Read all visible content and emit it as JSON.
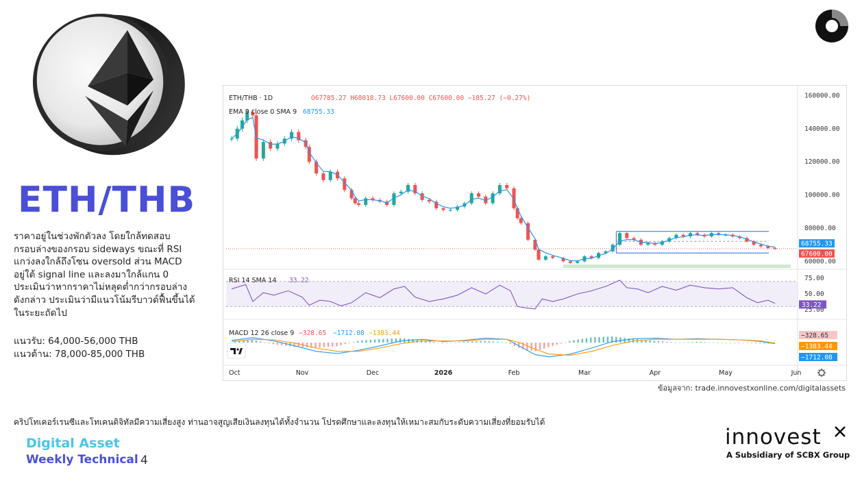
{
  "header": {
    "title": "ETH/THB"
  },
  "description_lines": [
    "ราคาอยู่ในช่วงพักตัวลง โดยใกล้ทดสอบ",
    "กรอบล่างของกรอบ sideways ขณะที่ RSI",
    "แกว่งลงใกล้ถึงโซน oversold ส่วน MACD",
    "อยู่ใต้ signal line และลงมาใกล้แกน 0",
    "ประเมินว่าหากราคาไม่หลุดต่ำกว่ากรอบล่าง",
    "ดังกล่าว ประเมินว่ามีแนวโน้มรีบาวด์ฟื้นขึ้นได้",
    "ในระยะถัดไป"
  ],
  "levels": {
    "support": "แนวรับ: 64,000-56,000 THB",
    "resistance": "แนวต้าน: 78,000-85,000 THB"
  },
  "source": "ข้อมูลจาก: trade.innovestxonline.com/digitalassets",
  "disclaimer": "คริปโทเคอร์เรนซีและโทเคนดิจิทัลมีความเสี่ยงสูง ท่านอาจสูญเสียเงินลงทุนได้ทั้งจำนวน  โปรดศึกษาและลงทุนให้เหมาะสมกับระดับความเสี่ยงที่ยอมรับได้",
  "footer": {
    "line1": "Digital Asset",
    "line2": "Weekly Technical",
    "page": "4"
  },
  "logo": {
    "name": "innovest",
    "subtitle": "A Subsidiary of SCBX Group"
  },
  "colors": {
    "title": "#4a4fd6",
    "footer_line1": "#49c6e5",
    "footer_line2": "#4a4fd6",
    "up": "#26a69a",
    "down": "#ef5350",
    "ema": "#2196f3",
    "rsi": "#7e57c2",
    "macd": "#2196f3",
    "signal": "#ff9800",
    "channel": "#2962ff"
  },
  "chart_data": {
    "type": "candlestick",
    "symbol": "ETH/THB · 1D",
    "ohlc_text": "O67785.27  H68018.73  L67600.00  C67600.00  −185.27 (−0.27%)",
    "ema_label": "EMA 9 close 0 SMA 9",
    "ema_value": "68755.33",
    "rsi_label": "RSI 14 SMA 14",
    "rsi_value": "33.22",
    "macd_label": "MACD 12 26 close 9",
    "macd_values": [
      "−328.65",
      "−1712.08",
      "−1383.44"
    ],
    "x_ticks": [
      "Oct",
      "Nov",
      "Dec",
      "2026",
      "Feb",
      "Mar",
      "Apr",
      "May",
      "Jun"
    ],
    "y_ticks": [
      160000,
      140000,
      120000,
      100000,
      80000,
      60000
    ],
    "y_tick_labels": [
      "160000.00",
      "140000.00",
      "120000.00",
      "100000.00",
      "80000.00",
      "60000.00"
    ],
    "ylim": [
      56000,
      161000
    ],
    "price_badges": [
      {
        "label": "68755.33",
        "value": 68755.33,
        "color": "#2196f3"
      },
      {
        "label": "67600.00",
        "value": 67600,
        "color": "#ef5350"
      }
    ],
    "rsi_ticks": [
      "75.00",
      "50.00",
      "25.00"
    ],
    "rsi_badge": "33.22",
    "macd_badges": [
      {
        "label": "−328.65",
        "color": "#f8c6c6"
      },
      {
        "label": "−1383.44",
        "color": "#ff9800"
      },
      {
        "label": "−1712.08",
        "color": "#2196f3"
      }
    ],
    "channel": {
      "top": 78000,
      "mid": 72000,
      "bottom": 65000,
      "start_month": 5.45,
      "end_month": 8.7
    },
    "support_zone": {
      "from": 56000,
      "to": 58000,
      "start_month": 4.7,
      "end_month": 8.7
    },
    "price_path": [
      [
        0.0,
        134000
      ],
      [
        0.08,
        140000
      ],
      [
        0.15,
        145000
      ],
      [
        0.22,
        150000
      ],
      [
        0.3,
        148000
      ],
      [
        0.35,
        122000
      ],
      [
        0.45,
        132000
      ],
      [
        0.55,
        128000
      ],
      [
        0.65,
        131000
      ],
      [
        0.75,
        134000
      ],
      [
        0.85,
        138000
      ],
      [
        0.95,
        133000
      ],
      [
        1.05,
        129000
      ],
      [
        1.1,
        120000
      ],
      [
        1.2,
        113000
      ],
      [
        1.3,
        109000
      ],
      [
        1.4,
        114000
      ],
      [
        1.5,
        110000
      ],
      [
        1.6,
        103000
      ],
      [
        1.7,
        98000
      ],
      [
        1.75,
        95000
      ],
      [
        1.8,
        94000
      ],
      [
        1.9,
        98000
      ],
      [
        2.0,
        97000
      ],
      [
        2.1,
        96000
      ],
      [
        2.2,
        94000
      ],
      [
        2.3,
        101000
      ],
      [
        2.4,
        102000
      ],
      [
        2.5,
        106000
      ],
      [
        2.6,
        101000
      ],
      [
        2.7,
        97000
      ],
      [
        2.8,
        96000
      ],
      [
        2.9,
        92000
      ],
      [
        3.0,
        91000
      ],
      [
        3.1,
        91000
      ],
      [
        3.2,
        93000
      ],
      [
        3.3,
        95000
      ],
      [
        3.4,
        101000
      ],
      [
        3.5,
        99000
      ],
      [
        3.6,
        95000
      ],
      [
        3.7,
        101000
      ],
      [
        3.8,
        106000
      ],
      [
        3.9,
        104000
      ],
      [
        4.0,
        92000
      ],
      [
        4.05,
        86000
      ],
      [
        4.1,
        83000
      ],
      [
        4.2,
        73000
      ],
      [
        4.3,
        67000
      ],
      [
        4.35,
        61000
      ],
      [
        4.45,
        63000
      ],
      [
        4.55,
        62000
      ],
      [
        4.7,
        60000
      ],
      [
        4.8,
        59000
      ],
      [
        4.9,
        60000
      ],
      [
        5.0,
        63000
      ],
      [
        5.1,
        62000
      ],
      [
        5.2,
        65000
      ],
      [
        5.3,
        66000
      ],
      [
        5.4,
        70000
      ],
      [
        5.5,
        77000
      ],
      [
        5.6,
        74000
      ],
      [
        5.7,
        73000
      ],
      [
        5.8,
        70000
      ],
      [
        5.9,
        71000
      ],
      [
        6.0,
        70000
      ],
      [
        6.1,
        72000
      ],
      [
        6.2,
        74000
      ],
      [
        6.3,
        76000
      ],
      [
        6.4,
        75000
      ],
      [
        6.5,
        77000
      ],
      [
        6.6,
        76000
      ],
      [
        6.7,
        75000
      ],
      [
        6.8,
        77000
      ],
      [
        6.9,
        76000
      ],
      [
        7.0,
        76000
      ],
      [
        7.1,
        75000
      ],
      [
        7.2,
        74000
      ],
      [
        7.3,
        72000
      ],
      [
        7.4,
        70000
      ],
      [
        7.5,
        69000
      ],
      [
        7.6,
        68000
      ],
      [
        7.7,
        67600
      ]
    ],
    "rsi_path": [
      [
        0.0,
        58
      ],
      [
        0.2,
        65
      ],
      [
        0.3,
        38
      ],
      [
        0.45,
        52
      ],
      [
        0.6,
        48
      ],
      [
        0.8,
        55
      ],
      [
        1.0,
        45
      ],
      [
        1.1,
        32
      ],
      [
        1.25,
        40
      ],
      [
        1.4,
        38
      ],
      [
        1.55,
        31
      ],
      [
        1.7,
        36
      ],
      [
        1.9,
        52
      ],
      [
        2.1,
        44
      ],
      [
        2.3,
        58
      ],
      [
        2.45,
        62
      ],
      [
        2.6,
        45
      ],
      [
        2.8,
        38
      ],
      [
        3.0,
        42
      ],
      [
        3.2,
        48
      ],
      [
        3.4,
        60
      ],
      [
        3.6,
        50
      ],
      [
        3.8,
        64
      ],
      [
        3.95,
        55
      ],
      [
        4.05,
        30
      ],
      [
        4.15,
        28
      ],
      [
        4.3,
        26
      ],
      [
        4.4,
        42
      ],
      [
        4.55,
        38
      ],
      [
        4.7,
        42
      ],
      [
        4.9,
        50
      ],
      [
        5.1,
        55
      ],
      [
        5.3,
        62
      ],
      [
        5.5,
        72
      ],
      [
        5.6,
        60
      ],
      [
        5.75,
        58
      ],
      [
        5.9,
        52
      ],
      [
        6.1,
        62
      ],
      [
        6.3,
        56
      ],
      [
        6.5,
        64
      ],
      [
        6.7,
        60
      ],
      [
        6.9,
        58
      ],
      [
        7.1,
        60
      ],
      [
        7.3,
        44
      ],
      [
        7.45,
        36
      ],
      [
        7.6,
        40
      ],
      [
        7.7,
        35
      ]
    ],
    "macd_path": [
      [
        0.0,
        0.4
      ],
      [
        0.3,
        0.9
      ],
      [
        0.6,
        0.3
      ],
      [
        0.9,
        -0.6
      ],
      [
        1.2,
        -1.6
      ],
      [
        1.5,
        -2.0
      ],
      [
        1.8,
        -1.4
      ],
      [
        2.1,
        -0.6
      ],
      [
        2.4,
        0.3
      ],
      [
        2.7,
        0.6
      ],
      [
        3.0,
        0.2
      ],
      [
        3.3,
        0.4
      ],
      [
        3.6,
        0.8
      ],
      [
        3.9,
        0.6
      ],
      [
        4.1,
        -0.8
      ],
      [
        4.3,
        -2.2
      ],
      [
        4.5,
        -2.6
      ],
      [
        4.8,
        -2.1
      ],
      [
        5.1,
        -1.0
      ],
      [
        5.4,
        0.2
      ],
      [
        5.7,
        0.7
      ],
      [
        6.0,
        0.8
      ],
      [
        6.3,
        0.6
      ],
      [
        6.6,
        0.7
      ],
      [
        6.9,
        0.6
      ],
      [
        7.2,
        0.5
      ],
      [
        7.5,
        0.2
      ],
      [
        7.7,
        -0.2
      ]
    ],
    "signal_path": [
      [
        0.0,
        0.2
      ],
      [
        0.3,
        0.6
      ],
      [
        0.6,
        0.5
      ],
      [
        0.9,
        -0.1
      ],
      [
        1.2,
        -1.0
      ],
      [
        1.5,
        -1.6
      ],
      [
        1.8,
        -1.6
      ],
      [
        2.1,
        -1.0
      ],
      [
        2.4,
        -0.2
      ],
      [
        2.7,
        0.3
      ],
      [
        3.0,
        0.3
      ],
      [
        3.3,
        0.3
      ],
      [
        3.6,
        0.6
      ],
      [
        3.9,
        0.6
      ],
      [
        4.1,
        -0.1
      ],
      [
        4.3,
        -1.2
      ],
      [
        4.5,
        -2.1
      ],
      [
        4.8,
        -2.3
      ],
      [
        5.1,
        -1.6
      ],
      [
        5.4,
        -0.5
      ],
      [
        5.7,
        0.3
      ],
      [
        6.0,
        0.6
      ],
      [
        6.3,
        0.6
      ],
      [
        6.6,
        0.6
      ],
      [
        6.9,
        0.6
      ],
      [
        7.2,
        0.5
      ],
      [
        7.5,
        0.3
      ],
      [
        7.7,
        -0.1
      ]
    ]
  }
}
